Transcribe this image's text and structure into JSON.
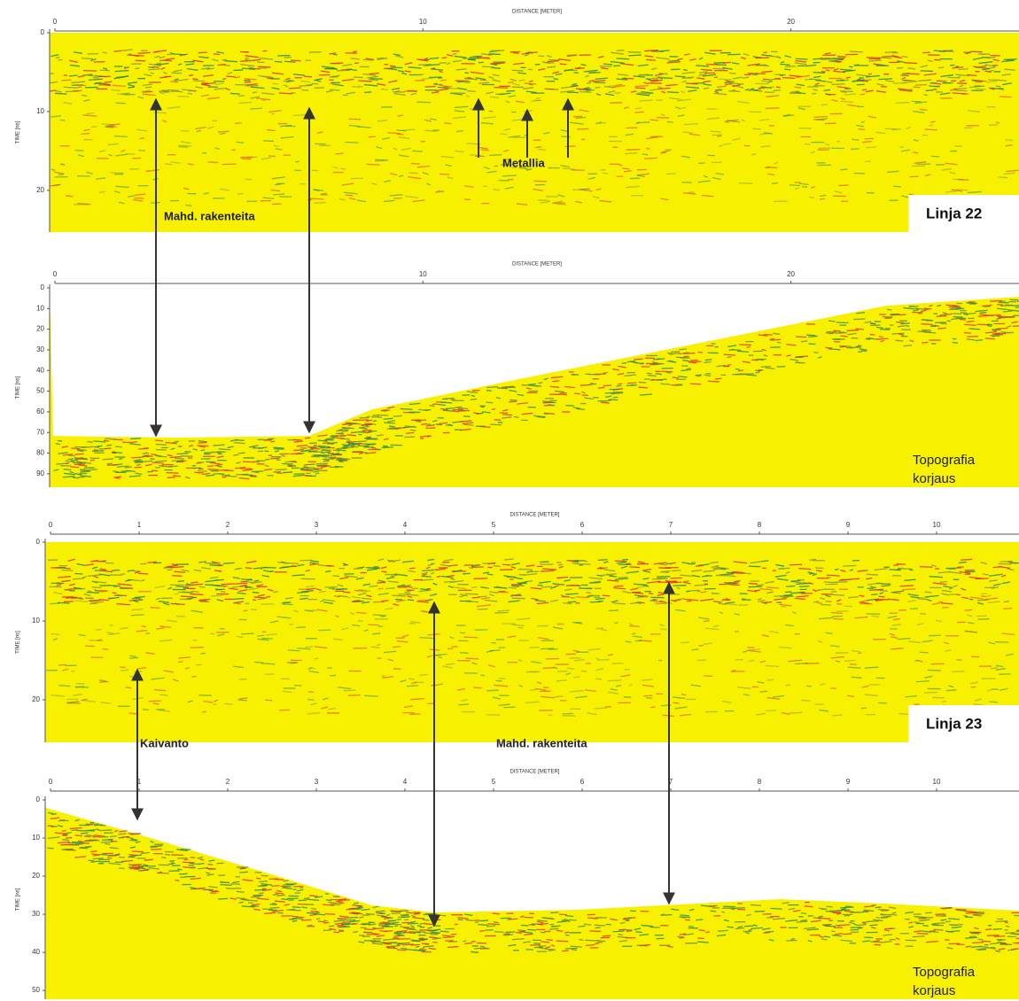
{
  "panels": [
    {
      "x_axis_label": "DISTANCE [METER]",
      "y_axis_label": "TIME [ns]",
      "xlim": [
        0,
        26.2
      ],
      "xticks": [
        0,
        10,
        20
      ],
      "ylim": [
        0,
        25.3
      ],
      "yticks": [
        0,
        10,
        20
      ],
      "annotations": [
        "Metallia",
        "Mahd. rakenteita"
      ],
      "line_label": "Linja 22"
    },
    {
      "x_axis_label": "DISTANCE [METER]",
      "y_axis_label": "TIME [ns]",
      "xlim": [
        0,
        26.2
      ],
      "xticks": [
        0,
        10,
        20
      ],
      "ylim": [
        0,
        96.5
      ],
      "yticks": [
        0,
        10,
        20,
        30,
        40,
        50,
        60,
        70,
        80,
        90
      ],
      "annotations": [],
      "line_label": [
        "Topografia",
        "korjaus"
      ]
    },
    {
      "x_axis_label": "DISTANCE [METER]",
      "y_axis_label": "TIME [ns]",
      "xlim": [
        0,
        10.93
      ],
      "xticks": [
        0,
        1,
        2,
        3,
        4,
        5,
        6,
        7,
        8,
        9,
        10
      ],
      "ylim": [
        0,
        25.4
      ],
      "yticks": [
        0,
        10,
        20
      ],
      "annotations": [
        "Kaivanto",
        "Mahd. rakenteita"
      ],
      "line_label": "Linja 23"
    },
    {
      "x_axis_label": "DISTANCE [METER]",
      "y_axis_label": "TIME [ns]",
      "xlim": [
        0,
        10.93
      ],
      "xticks": [
        0,
        1,
        2,
        3,
        4,
        5,
        6,
        7,
        8,
        9,
        10
      ],
      "ylim": [
        0,
        52.3
      ],
      "yticks": [
        0,
        10,
        20,
        30,
        40,
        50
      ],
      "annotations": [],
      "line_label": [
        "Topografia",
        "korjaus"
      ]
    }
  ]
}
